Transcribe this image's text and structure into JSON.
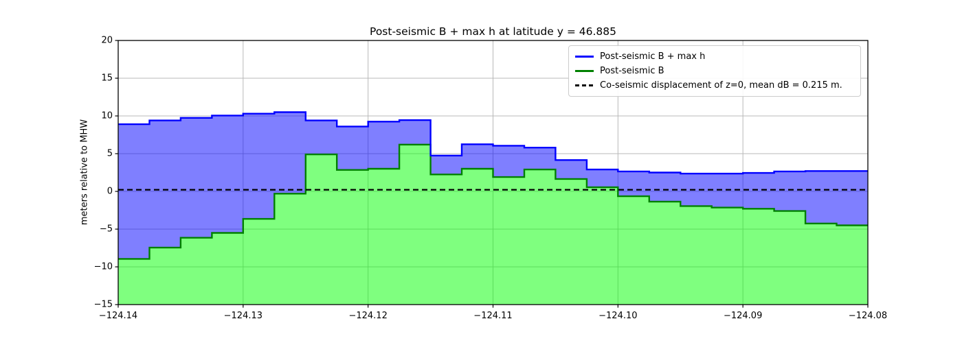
{
  "title": "Post-seismic B + max h at latitude y = 46.885",
  "ylabel": "meters relative to MHW",
  "legend": {
    "entries": [
      {
        "label": "Post-seismic B + max h",
        "color": "#0000ff",
        "style": "solid"
      },
      {
        "label": "Post-seismic B",
        "color": "#008000",
        "style": "solid"
      },
      {
        "label": "Co-seismic displacement of z=0, mean dB = 0.215 m.",
        "color": "#000000",
        "style": "dashed"
      }
    ],
    "position": "upper right"
  },
  "chart_data": {
    "type": "area",
    "step_mode": "post",
    "x_start": -124.14,
    "x_step": 0.0025,
    "xlim": [
      -124.14,
      -124.08
    ],
    "ylim": [
      -15,
      20
    ],
    "grid": true,
    "grid_color": "#b8b8b8",
    "background": "#ffffff",
    "xticks": [
      {
        "v": -124.14,
        "label": "−124.14"
      },
      {
        "v": -124.13,
        "label": "−124.13"
      },
      {
        "v": -124.12,
        "label": "−124.12"
      },
      {
        "v": -124.11,
        "label": "−124.11"
      },
      {
        "v": -124.1,
        "label": "−124.10"
      },
      {
        "v": -124.09,
        "label": "−124.09"
      },
      {
        "v": -124.08,
        "label": "−124.08"
      }
    ],
    "yticks": [
      {
        "v": 20,
        "label": "20"
      },
      {
        "v": 15,
        "label": "15"
      },
      {
        "v": 10,
        "label": "10"
      },
      {
        "v": 5,
        "label": "5"
      },
      {
        "v": 0,
        "label": "0"
      },
      {
        "v": -5,
        "label": "−5"
      },
      {
        "v": -10,
        "label": "−10"
      },
      {
        "v": -15,
        "label": "−15"
      }
    ],
    "series": [
      {
        "name": "Post-seismic B + max h",
        "line_color": "#0000ff",
        "fill_color": "rgba(0,0,255,0.5)",
        "fill_base": "other_series",
        "values": [
          8.9,
          9.4,
          9.75,
          10.05,
          10.3,
          10.5,
          9.4,
          8.6,
          9.25,
          9.45,
          4.75,
          6.25,
          6.05,
          5.8,
          4.15,
          2.9,
          2.65,
          2.5,
          2.35,
          2.35,
          2.45,
          2.65,
          2.7,
          2.7
        ]
      },
      {
        "name": "Post-seismic B",
        "line_color": "#008000",
        "fill_color": "rgba(0,255,0,0.5)",
        "fill_base": "bottom",
        "values": [
          -8.95,
          -7.45,
          -6.15,
          -5.5,
          -3.65,
          -0.3,
          4.9,
          2.85,
          3.0,
          6.2,
          2.25,
          3.0,
          1.9,
          2.9,
          1.65,
          0.55,
          -0.65,
          -1.35,
          -1.95,
          -2.15,
          -2.3,
          -2.6,
          -4.25,
          -4.5
        ]
      }
    ],
    "dashed_line": {
      "y": 0.215,
      "color": "#000000",
      "label": "Co-seismic displacement of z=0, mean dB = 0.215 m."
    }
  }
}
